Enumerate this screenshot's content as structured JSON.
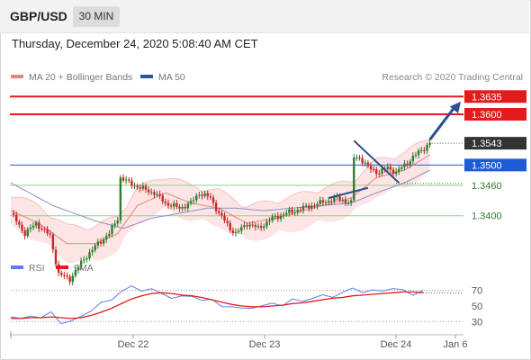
{
  "header": {
    "symbol": "GBP/USD",
    "timeframe": "30 MIN",
    "datetime": "Thursday, December 24, 2020 5:08:40 AM CET"
  },
  "legend": {
    "items": [
      {
        "label": "MA 20 + Bollinger Bands",
        "color": "#f08080"
      },
      {
        "label": "MA 50",
        "color": "#2b5797"
      }
    ],
    "credit": "Research © 2020 Trading Central"
  },
  "chart_data": [
    {
      "type": "candlestick",
      "title": "",
      "x_tick_labels": [
        "Dec 22",
        "Dec 23",
        "Dec 24",
        "Jan 6"
      ],
      "ylim": [
        1.3325,
        1.3655
      ],
      "current_price": {
        "label": "1.3543",
        "value": 1.3543,
        "color": "#333333"
      },
      "levels": [
        {
          "label": "1.3635",
          "value": 1.3635,
          "color": "#e41a1c",
          "style": "resistance"
        },
        {
          "label": "1.3600",
          "value": 1.36,
          "color": "#e41a1c",
          "style": "resistance"
        },
        {
          "label": "1.3500",
          "value": 1.35,
          "color": "#1f5bd6",
          "style": "pivot"
        },
        {
          "label": "1.3460",
          "value": 1.346,
          "color": "#2e8b2e",
          "style": "support"
        },
        {
          "label": "1.3400",
          "value": 1.34,
          "color": "#2e8b2e",
          "style": "support"
        }
      ],
      "price_path": [
        {
          "x": 0,
          "y": 1.3405
        },
        {
          "x": 5,
          "y": 1.3365
        },
        {
          "x": 9,
          "y": 1.3385
        },
        {
          "x": 14,
          "y": 1.336
        },
        {
          "x": 17,
          "y": 1.3285
        },
        {
          "x": 21,
          "y": 1.3275
        },
        {
          "x": 26,
          "y": 1.3315
        },
        {
          "x": 31,
          "y": 1.3345
        },
        {
          "x": 35,
          "y": 1.3365
        },
        {
          "x": 38,
          "y": 1.3395
        },
        {
          "x": 39,
          "y": 1.3475
        },
        {
          "x": 42,
          "y": 1.3465
        },
        {
          "x": 46,
          "y": 1.3455
        },
        {
          "x": 51,
          "y": 1.3445
        },
        {
          "x": 55,
          "y": 1.3425
        },
        {
          "x": 60,
          "y": 1.3415
        },
        {
          "x": 64,
          "y": 1.3425
        },
        {
          "x": 67,
          "y": 1.3445
        },
        {
          "x": 71,
          "y": 1.3435
        },
        {
          "x": 74,
          "y": 1.3405
        },
        {
          "x": 78,
          "y": 1.3375
        },
        {
          "x": 80,
          "y": 1.3365
        },
        {
          "x": 84,
          "y": 1.3385
        },
        {
          "x": 88,
          "y": 1.3375
        },
        {
          "x": 93,
          "y": 1.3395
        },
        {
          "x": 98,
          "y": 1.3405
        },
        {
          "x": 104,
          "y": 1.3415
        },
        {
          "x": 110,
          "y": 1.3425
        },
        {
          "x": 116,
          "y": 1.3435
        },
        {
          "x": 121,
          "y": 1.3425
        },
        {
          "x": 122,
          "y": 1.3515
        },
        {
          "x": 124,
          "y": 1.3515
        },
        {
          "x": 127,
          "y": 1.3495
        },
        {
          "x": 131,
          "y": 1.3485
        },
        {
          "x": 134,
          "y": 1.3495
        },
        {
          "x": 137,
          "y": 1.3485
        },
        {
          "x": 141,
          "y": 1.3505
        },
        {
          "x": 145,
          "y": 1.3525
        },
        {
          "x": 149,
          "y": 1.3543
        }
      ],
      "ma20_mid": [
        {
          "x": 0,
          "y": 1.341
        },
        {
          "x": 10,
          "y": 1.3385
        },
        {
          "x": 20,
          "y": 1.3345
        },
        {
          "x": 30,
          "y": 1.3345
        },
        {
          "x": 38,
          "y": 1.3365
        },
        {
          "x": 45,
          "y": 1.342
        },
        {
          "x": 55,
          "y": 1.3445
        },
        {
          "x": 64,
          "y": 1.3425
        },
        {
          "x": 74,
          "y": 1.3415
        },
        {
          "x": 84,
          "y": 1.3385
        },
        {
          "x": 94,
          "y": 1.3395
        },
        {
          "x": 104,
          "y": 1.341
        },
        {
          "x": 114,
          "y": 1.3425
        },
        {
          "x": 121,
          "y": 1.3435
        },
        {
          "x": 130,
          "y": 1.3475
        },
        {
          "x": 140,
          "y": 1.349
        },
        {
          "x": 149,
          "y": 1.352
        }
      ],
      "bollinger_width": 0.0035,
      "ma50": [
        {
          "x": 0,
          "y": 1.3465
        },
        {
          "x": 15,
          "y": 1.342
        },
        {
          "x": 30,
          "y": 1.339
        },
        {
          "x": 40,
          "y": 1.3375
        },
        {
          "x": 50,
          "y": 1.3395
        },
        {
          "x": 60,
          "y": 1.3405
        },
        {
          "x": 70,
          "y": 1.3415
        },
        {
          "x": 80,
          "y": 1.3415
        },
        {
          "x": 90,
          "y": 1.341
        },
        {
          "x": 100,
          "y": 1.3415
        },
        {
          "x": 110,
          "y": 1.342
        },
        {
          "x": 121,
          "y": 1.3425
        },
        {
          "x": 130,
          "y": 1.3445
        },
        {
          "x": 140,
          "y": 1.3465
        },
        {
          "x": 149,
          "y": 1.349
        }
      ],
      "pattern_lines": [
        {
          "x1": 113,
          "y1": 1.3435,
          "x2": 127,
          "y2": 1.3455
        },
        {
          "x1": 122,
          "y1": 1.3548,
          "x2": 138,
          "y2": 1.3465
        }
      ],
      "arrow": {
        "x1": 149,
        "y1": 1.355,
        "x2": 160,
        "y2": 1.3625
      }
    },
    {
      "type": "line",
      "title": "",
      "series": [
        {
          "name": "RSI",
          "color": "#5b7ee5",
          "values": [
            36,
            32,
            40,
            33,
            42,
            30,
            28,
            38,
            45,
            52,
            60,
            68,
            74,
            72,
            70,
            66,
            62,
            60,
            64,
            58,
            56,
            52,
            48,
            46,
            50,
            48,
            54,
            52,
            56,
            58,
            60,
            62,
            64,
            66,
            72,
            70,
            68,
            70,
            74,
            68,
            66,
            70
          ]
        },
        {
          "name": "9MA",
          "color": "#e41a1c",
          "values": [
            34,
            34,
            35,
            35,
            36,
            35,
            34,
            35,
            38,
            42,
            47,
            53,
            59,
            63,
            66,
            67,
            66,
            64,
            63,
            61,
            58,
            55,
            52,
            50,
            49,
            49,
            50,
            51,
            53,
            54,
            56,
            58,
            60,
            61,
            63,
            64,
            65,
            66,
            67,
            68,
            68,
            67
          ]
        }
      ],
      "y_ticks": [
        "70",
        "50",
        "30"
      ],
      "ylim": [
        20,
        80
      ]
    }
  ]
}
